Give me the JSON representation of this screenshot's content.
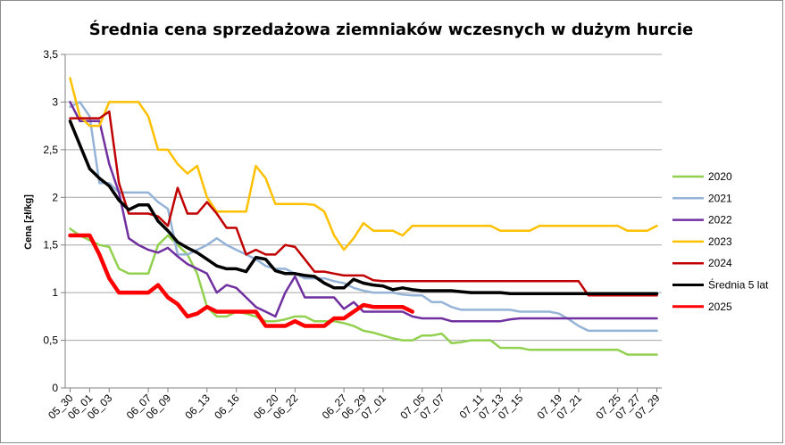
{
  "chart_data": {
    "type": "line",
    "title": "Średnia cena sprzedażowa ziemniaków  wczesnych w dużym hurcie",
    "xlabel": "",
    "ylabel": "Cena [zł/kg]",
    "ylim": [
      0,
      3.5
    ],
    "yticks": [
      0,
      0.5,
      1,
      1.5,
      2,
      2.5,
      3,
      3.5
    ],
    "ytick_labels": [
      "0",
      "0,5",
      "1",
      "1,5",
      "2",
      "2,5",
      "3",
      "3,5"
    ],
    "grid": "horizontal",
    "legend_position": "right",
    "x": [
      "05_30",
      "05_31",
      "06_01",
      "06_02",
      "06_03",
      "06_04",
      "06_05",
      "06_06",
      "06_07",
      "06_08",
      "06_09",
      "06_10",
      "06_11",
      "06_12",
      "06_13",
      "06_14",
      "06_15",
      "06_16",
      "06_17",
      "06_18",
      "06_19",
      "06_20",
      "06_21",
      "06_22",
      "06_23",
      "06_24",
      "06_25",
      "06_26",
      "06_27",
      "06_28",
      "06_29",
      "06_30",
      "07_01",
      "07_02",
      "07_03",
      "07_04",
      "07_05",
      "07_06",
      "07_07",
      "07_08",
      "07_09",
      "07_10",
      "07_11",
      "07_12",
      "07_13",
      "07_14",
      "07_15",
      "07_16",
      "07_17",
      "07_18",
      "07_19",
      "07_20",
      "07_21",
      "07_22",
      "07_23",
      "07_24",
      "07_25",
      "07_26",
      "07_27",
      "07_28",
      "07_29"
    ],
    "x_tick_labels": [
      "05_30",
      "06_01",
      "06_03",
      "06_07",
      "06_09",
      "06_13",
      "06_16",
      "06_20",
      "06_22",
      "06_27",
      "06_29",
      "07_01",
      "07_05",
      "07_07",
      "07_11",
      "07_13",
      "07_15",
      "07_19",
      "07_21",
      "07_25",
      "07_27",
      "07_29"
    ],
    "series": [
      {
        "name": "2020",
        "color": "#92d050",
        "width": 2.5,
        "values": [
          1.67,
          1.6,
          1.55,
          1.5,
          1.48,
          1.25,
          1.2,
          1.2,
          1.2,
          1.5,
          1.6,
          1.5,
          1.4,
          1.2,
          0.85,
          0.75,
          0.75,
          0.8,
          0.78,
          0.75,
          0.7,
          0.7,
          0.72,
          0.75,
          0.75,
          0.7,
          0.7,
          0.7,
          0.68,
          0.65,
          0.6,
          0.58,
          0.55,
          0.52,
          0.5,
          0.5,
          0.55,
          0.55,
          0.57,
          0.47,
          0.48,
          0.5,
          0.5,
          0.5,
          0.42,
          0.42,
          0.42,
          0.4,
          0.4,
          0.4,
          0.4,
          0.4,
          0.4,
          0.4,
          0.4,
          0.4,
          0.4,
          0.35,
          0.35,
          0.35,
          0.35
        ]
      },
      {
        "name": "2021",
        "color": "#95b3d7",
        "width": 2.5,
        "values": [
          2.95,
          3.0,
          2.85,
          2.15,
          2.15,
          2.05,
          2.05,
          2.05,
          2.05,
          1.95,
          1.88,
          1.4,
          1.4,
          1.45,
          1.5,
          1.57,
          1.5,
          1.45,
          1.4,
          1.35,
          1.28,
          1.25,
          1.25,
          1.2,
          1.15,
          1.15,
          1.15,
          1.12,
          1.1,
          1.05,
          1.02,
          1.0,
          1.0,
          1.0,
          0.98,
          0.97,
          0.97,
          0.9,
          0.9,
          0.85,
          0.82,
          0.82,
          0.82,
          0.82,
          0.82,
          0.82,
          0.8,
          0.8,
          0.8,
          0.8,
          0.78,
          0.72,
          0.65,
          0.6,
          0.6,
          0.6,
          0.6,
          0.6,
          0.6,
          0.6,
          0.6
        ]
      },
      {
        "name": "2022",
        "color": "#7030a0",
        "width": 2.5,
        "values": [
          3.0,
          2.8,
          2.8,
          2.8,
          2.35,
          2.05,
          1.57,
          1.5,
          1.45,
          1.42,
          1.47,
          1.38,
          1.3,
          1.25,
          1.2,
          1.0,
          1.08,
          1.05,
          0.95,
          0.85,
          0.8,
          0.75,
          1.0,
          1.17,
          0.95,
          0.95,
          0.95,
          0.95,
          0.83,
          0.9,
          0.8,
          0.8,
          0.8,
          0.8,
          0.8,
          0.75,
          0.73,
          0.73,
          0.73,
          0.7,
          0.7,
          0.7,
          0.7,
          0.7,
          0.7,
          0.72,
          0.73,
          0.73,
          0.73,
          0.73,
          0.73,
          0.73,
          0.73,
          0.73,
          0.73,
          0.73,
          0.73,
          0.73,
          0.73,
          0.73,
          0.73
        ]
      },
      {
        "name": "2023",
        "color": "#ffc000",
        "width": 2.5,
        "values": [
          3.25,
          2.85,
          2.75,
          2.75,
          3.0,
          3.0,
          3.0,
          3.0,
          2.85,
          2.5,
          2.5,
          2.35,
          2.25,
          2.33,
          2.0,
          1.85,
          1.85,
          1.85,
          1.85,
          2.33,
          2.2,
          1.93,
          1.93,
          1.93,
          1.93,
          1.92,
          1.85,
          1.6,
          1.45,
          1.57,
          1.73,
          1.65,
          1.65,
          1.65,
          1.6,
          1.7,
          1.7,
          1.7,
          1.7,
          1.7,
          1.7,
          1.7,
          1.7,
          1.7,
          1.65,
          1.65,
          1.65,
          1.65,
          1.7,
          1.7,
          1.7,
          1.7,
          1.7,
          1.7,
          1.7,
          1.7,
          1.7,
          1.65,
          1.65,
          1.65,
          1.7
        ]
      },
      {
        "name": "2024",
        "color": "#c00000",
        "width": 2.5,
        "values": [
          2.83,
          2.83,
          2.83,
          2.83,
          2.9,
          2.15,
          1.83,
          1.83,
          1.83,
          1.8,
          1.7,
          2.1,
          1.83,
          1.83,
          1.95,
          1.83,
          1.68,
          1.68,
          1.4,
          1.45,
          1.4,
          1.4,
          1.5,
          1.48,
          1.35,
          1.22,
          1.22,
          1.2,
          1.18,
          1.18,
          1.18,
          1.13,
          1.12,
          1.12,
          1.12,
          1.12,
          1.12,
          1.12,
          1.12,
          1.12,
          1.12,
          1.12,
          1.12,
          1.12,
          1.12,
          1.12,
          1.12,
          1.12,
          1.12,
          1.12,
          1.12,
          1.12,
          1.12,
          0.97,
          0.97,
          0.97,
          0.97,
          0.97,
          0.97,
          0.97,
          0.97
        ]
      },
      {
        "name": "Średnia 5 lat",
        "color": "#000000",
        "width": 3.5,
        "values": [
          2.8,
          2.55,
          2.3,
          2.2,
          2.12,
          1.97,
          1.87,
          1.92,
          1.92,
          1.75,
          1.65,
          1.53,
          1.47,
          1.42,
          1.35,
          1.28,
          1.25,
          1.25,
          1.22,
          1.37,
          1.35,
          1.23,
          1.2,
          1.2,
          1.18,
          1.17,
          1.1,
          1.05,
          1.05,
          1.14,
          1.1,
          1.08,
          1.07,
          1.03,
          1.05,
          1.03,
          1.02,
          1.02,
          1.02,
          1.02,
          1.01,
          1.0,
          1.0,
          1.0,
          1.0,
          0.99,
          0.99,
          0.99,
          0.99,
          0.99,
          0.99,
          0.99,
          0.99,
          0.99,
          0.99,
          0.99,
          0.99,
          0.99,
          0.99,
          0.99,
          0.99
        ]
      },
      {
        "name": "2025",
        "color": "#ff0000",
        "width": 4.5,
        "values": [
          1.6,
          1.6,
          1.6,
          1.4,
          1.15,
          1.0,
          1.0,
          1.0,
          1.0,
          1.08,
          0.95,
          0.88,
          0.75,
          0.78,
          0.85,
          0.8,
          0.8,
          0.8,
          0.8,
          0.8,
          0.65,
          0.65,
          0.65,
          0.7,
          0.65,
          0.65,
          0.65,
          0.73,
          0.73,
          0.8,
          0.87,
          0.85,
          0.85,
          0.85,
          0.85,
          0.8,
          null,
          null,
          null,
          null,
          null,
          null,
          null,
          null,
          null,
          null,
          null,
          null,
          null,
          null,
          null,
          null,
          null,
          null,
          null,
          null,
          null,
          null,
          null,
          null,
          null
        ]
      }
    ]
  }
}
